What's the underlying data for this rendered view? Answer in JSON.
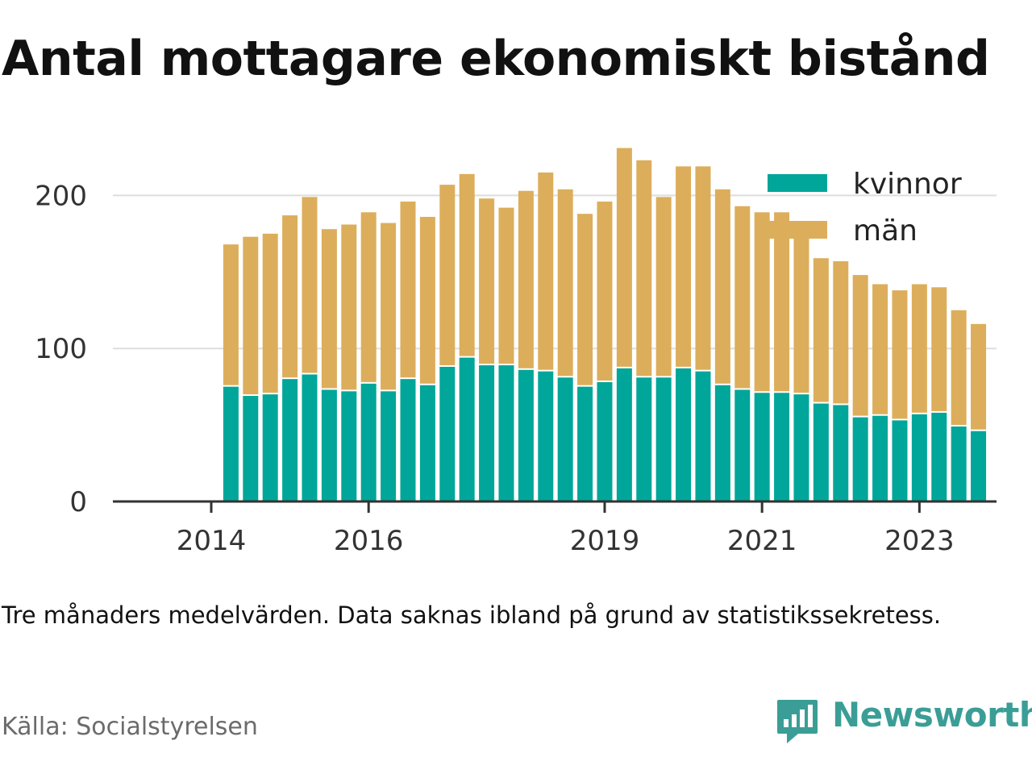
{
  "title": "Antal mottagare ekonomiskt bistånd",
  "note": "Tre månaders medelvärden. Data saknas ibland på grund av statistikssekretess.",
  "source": "Källa: Socialstyrelsen",
  "brand": {
    "name": "Newsworthy",
    "icon": "newsworthy-logo-icon",
    "color": "#3a9e96"
  },
  "chart_data": {
    "type": "bar",
    "stacked": true,
    "x_axis": {
      "ticks": [
        {
          "label": "2014",
          "value": 2014.0
        },
        {
          "label": "2016",
          "value": 2016.0
        },
        {
          "label": "2019",
          "value": 2019.0
        },
        {
          "label": "2021",
          "value": 2021.0
        },
        {
          "label": "2023",
          "value": 2023.0
        }
      ],
      "range": [
        2012.75,
        2023.98
      ]
    },
    "y_axis": {
      "ticks": [
        0,
        100,
        200
      ],
      "range": [
        0,
        235
      ],
      "gridlines": true
    },
    "legend": {
      "position": "top-right"
    },
    "x": [
      2014.25,
      2014.5,
      2014.75,
      2015.0,
      2015.25,
      2015.5,
      2015.75,
      2016.0,
      2016.25,
      2016.5,
      2016.75,
      2017.0,
      2017.25,
      2017.5,
      2017.75,
      2018.0,
      2018.25,
      2018.5,
      2018.75,
      2019.0,
      2019.25,
      2019.5,
      2019.75,
      2020.0,
      2020.25,
      2020.5,
      2020.75,
      2021.0,
      2021.25,
      2021.5,
      2021.75,
      2022.0,
      2022.25,
      2022.5,
      2022.75,
      2023.0,
      2023.25,
      2023.5,
      2023.75
    ],
    "series": [
      {
        "name": "kvinnor",
        "color": "#00a699",
        "values": [
          75,
          69,
          70,
          80,
          83,
          73,
          72,
          77,
          72,
          80,
          76,
          88,
          94,
          89,
          89,
          86,
          85,
          81,
          75,
          78,
          87,
          81,
          81,
          87,
          85,
          76,
          73,
          71,
          71,
          70,
          64,
          63,
          55,
          56,
          53,
          57,
          58,
          49,
          46
        ]
      },
      {
        "name": "män",
        "color": "#dcae5b",
        "values": [
          93,
          104,
          105,
          107,
          116,
          105,
          109,
          112,
          110,
          116,
          110,
          119,
          120,
          109,
          103,
          117,
          130,
          123,
          113,
          118,
          144,
          142,
          118,
          132,
          134,
          128,
          120,
          118,
          118,
          106,
          95,
          94,
          93,
          86,
          85,
          85,
          82,
          76,
          70
        ]
      }
    ]
  }
}
